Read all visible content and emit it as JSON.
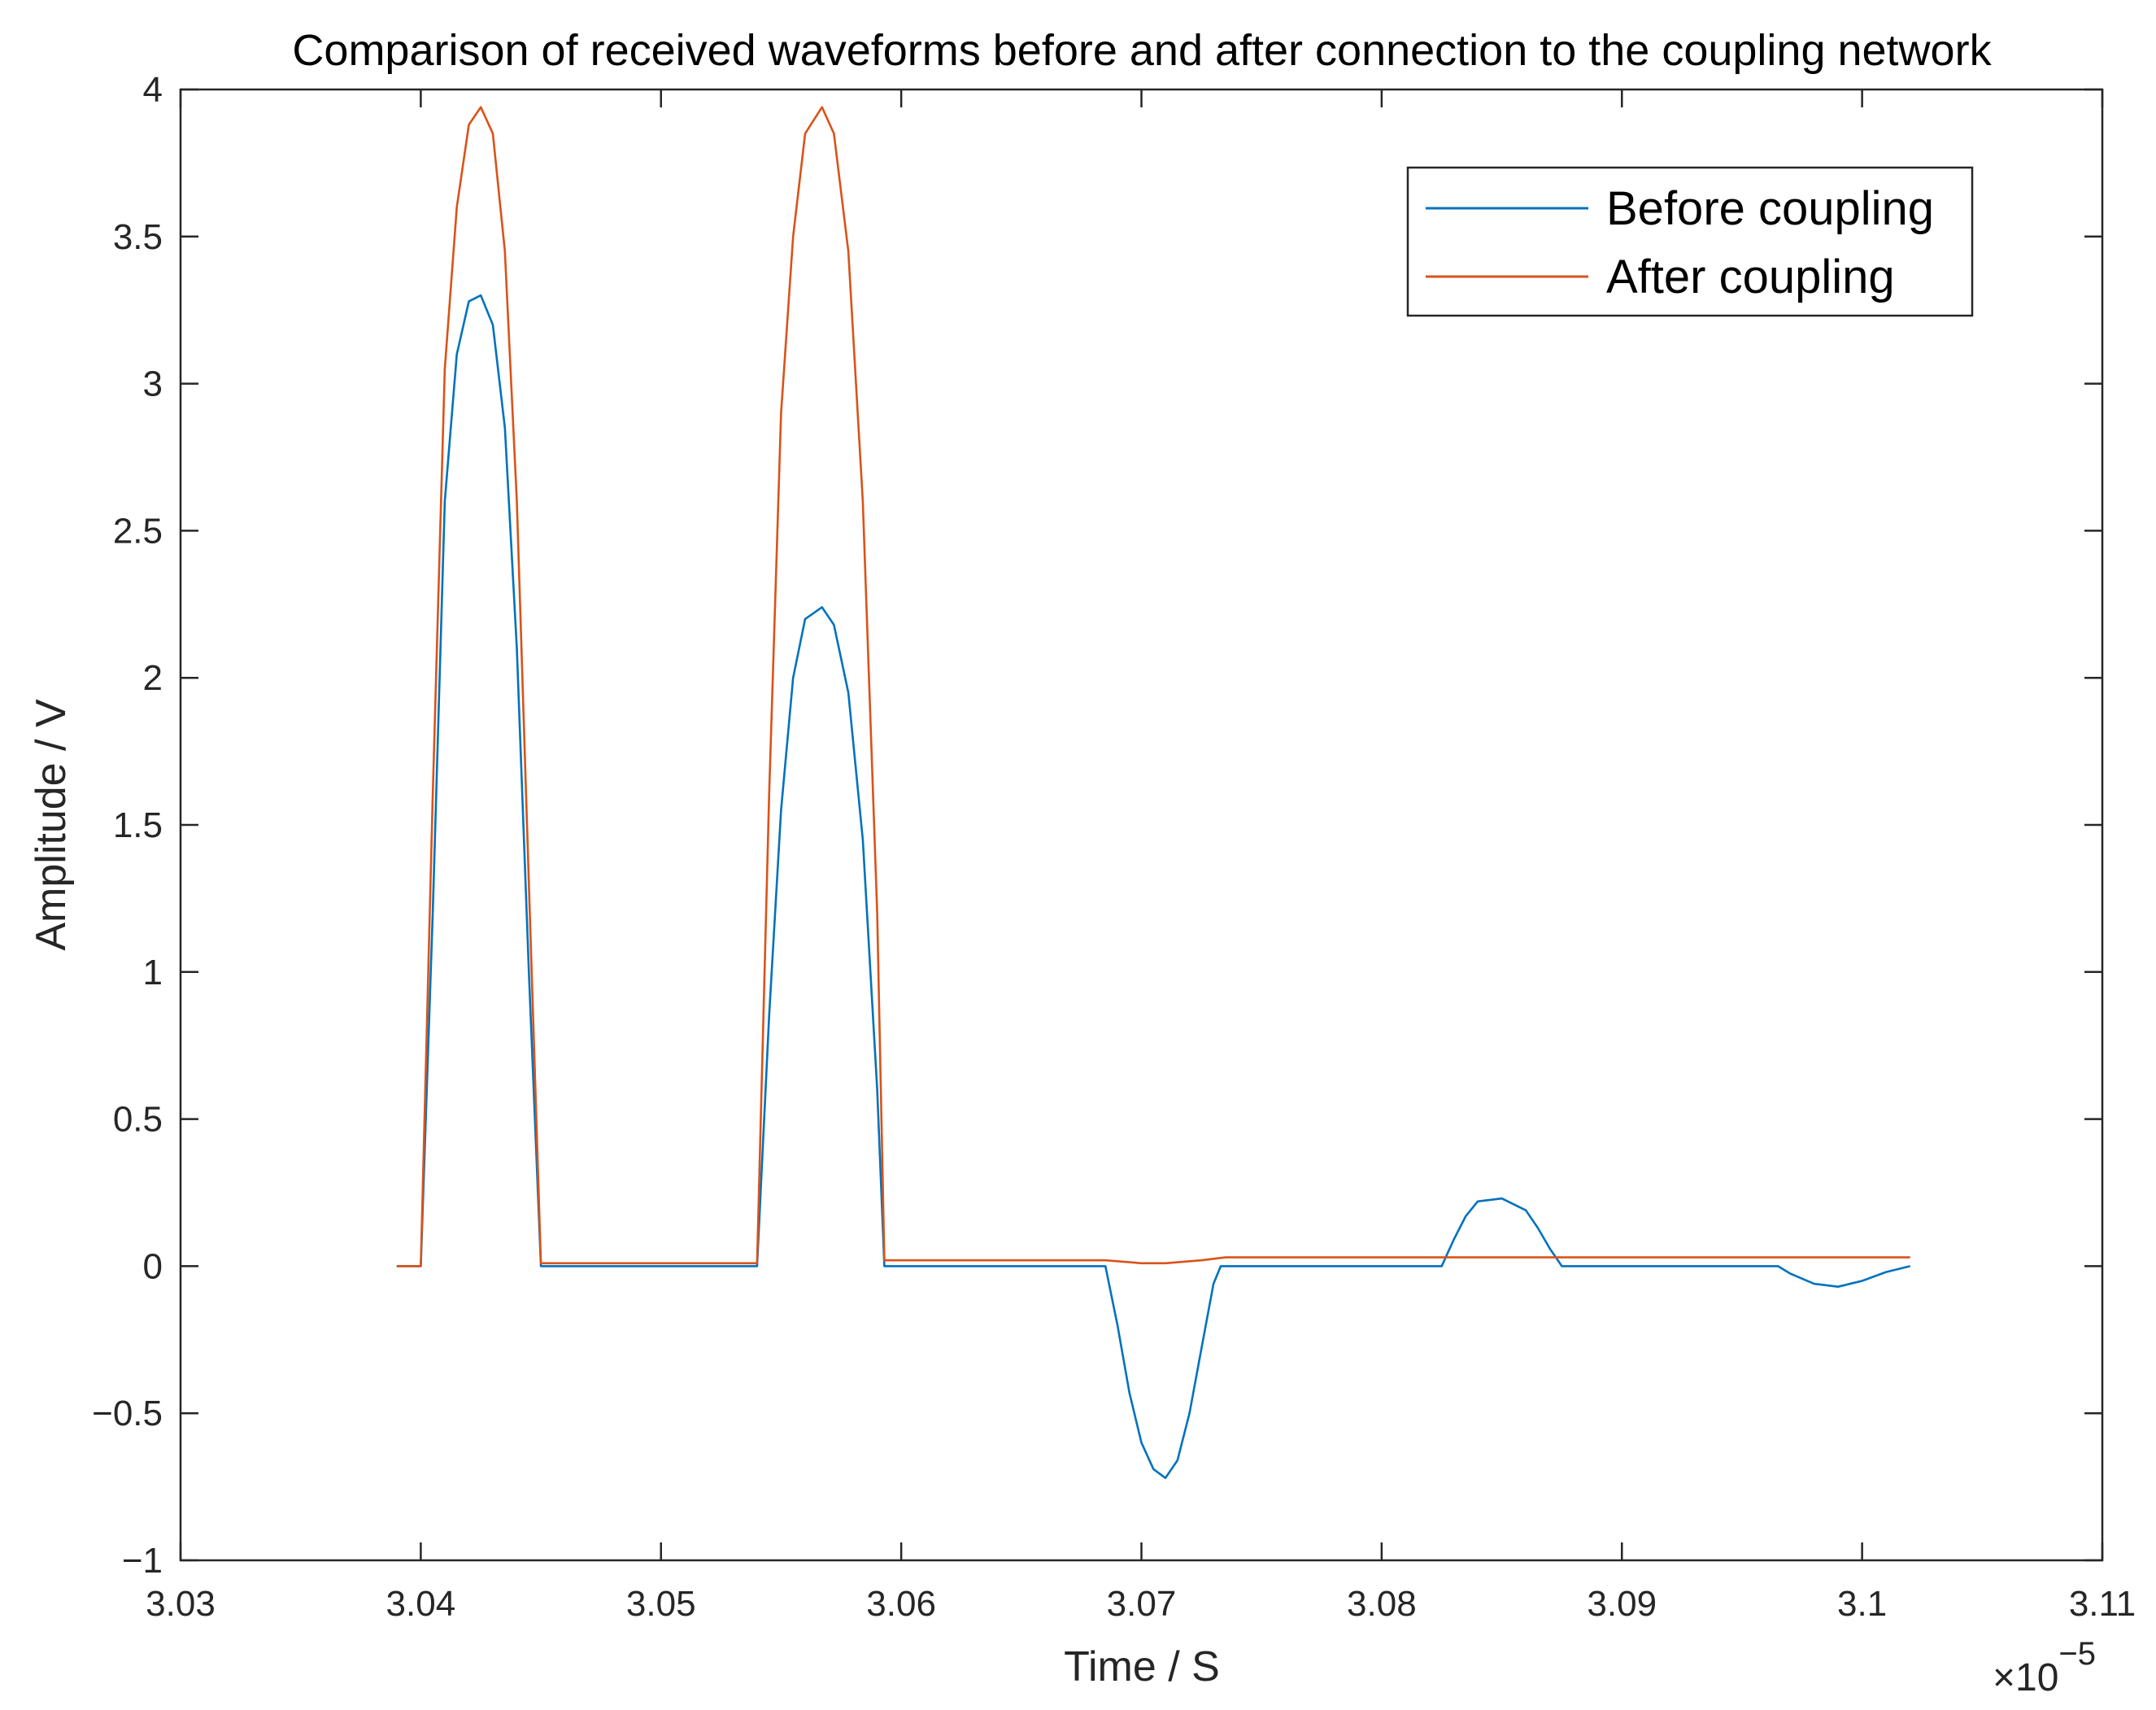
{
  "chart_data": {
    "type": "line",
    "title": "Comparison of received waveforms before and after connection to the coupling network",
    "xlabel": "Time / S",
    "ylabel": "Amplitude / V",
    "x_multiplier_base": "×10",
    "x_multiplier_exponent": "−5",
    "xlim": [
      3.03,
      3.11
    ],
    "ylim": [
      -1,
      4
    ],
    "x_ticks": [
      3.03,
      3.04,
      3.05,
      3.06,
      3.07,
      3.08,
      3.09,
      3.1,
      3.11
    ],
    "x_tick_labels": [
      "3.03",
      "3.04",
      "3.05",
      "3.06",
      "3.07",
      "3.08",
      "3.09",
      "3.1",
      "3.11"
    ],
    "y_ticks": [
      -1,
      -0.5,
      0,
      0.5,
      1,
      1.5,
      2,
      2.5,
      3,
      3.5,
      4
    ],
    "y_tick_labels": [
      "−1",
      "−0.5",
      "0",
      "0.5",
      "1",
      "1.5",
      "2",
      "2.5",
      "3",
      "3.5",
      "4"
    ],
    "grid": false,
    "legend_position": "top-right",
    "series": [
      {
        "name": "Before coupling",
        "color": "#0072BD",
        "points": [
          [
            3.039,
            0
          ],
          [
            3.04,
            0
          ],
          [
            3.0405,
            1.2
          ],
          [
            3.041,
            2.6
          ],
          [
            3.0415,
            3.1
          ],
          [
            3.042,
            3.28
          ],
          [
            3.0425,
            3.3
          ],
          [
            3.043,
            3.2
          ],
          [
            3.0435,
            2.85
          ],
          [
            3.044,
            2.1
          ],
          [
            3.0445,
            1.0
          ],
          [
            3.045,
            0
          ],
          [
            3.054,
            0
          ],
          [
            3.0545,
            0.85
          ],
          [
            3.055,
            1.55
          ],
          [
            3.0555,
            2.0
          ],
          [
            3.056,
            2.2
          ],
          [
            3.0567,
            2.24
          ],
          [
            3.0572,
            2.18
          ],
          [
            3.0578,
            1.95
          ],
          [
            3.0584,
            1.45
          ],
          [
            3.059,
            0.6
          ],
          [
            3.0593,
            0
          ],
          [
            3.0685,
            0
          ],
          [
            3.069,
            -0.2
          ],
          [
            3.0695,
            -0.43
          ],
          [
            3.07,
            -0.6
          ],
          [
            3.0705,
            -0.69
          ],
          [
            3.071,
            -0.72
          ],
          [
            3.0715,
            -0.66
          ],
          [
            3.072,
            -0.5
          ],
          [
            3.0725,
            -0.28
          ],
          [
            3.073,
            -0.06
          ],
          [
            3.0733,
            0
          ],
          [
            3.0825,
            0
          ],
          [
            3.083,
            0.09
          ],
          [
            3.0835,
            0.17
          ],
          [
            3.084,
            0.22
          ],
          [
            3.085,
            0.23
          ],
          [
            3.086,
            0.19
          ],
          [
            3.0865,
            0.13
          ],
          [
            3.087,
            0.06
          ],
          [
            3.0875,
            0
          ],
          [
            3.0965,
            0
          ],
          [
            3.097,
            -0.025
          ],
          [
            3.098,
            -0.06
          ],
          [
            3.099,
            -0.07
          ],
          [
            3.1,
            -0.05
          ],
          [
            3.101,
            -0.02
          ],
          [
            3.102,
            0
          ]
        ]
      },
      {
        "name": "After coupling",
        "color": "#D95319",
        "points": [
          [
            3.039,
            0
          ],
          [
            3.04,
            0
          ],
          [
            3.0405,
            1.6
          ],
          [
            3.041,
            3.05
          ],
          [
            3.0415,
            3.6
          ],
          [
            3.042,
            3.88
          ],
          [
            3.0425,
            3.94
          ],
          [
            3.043,
            3.85
          ],
          [
            3.0435,
            3.45
          ],
          [
            3.044,
            2.6
          ],
          [
            3.0445,
            1.3
          ],
          [
            3.045,
            0.01
          ],
          [
            3.054,
            0.01
          ],
          [
            3.0545,
            1.6
          ],
          [
            3.055,
            2.9
          ],
          [
            3.0555,
            3.5
          ],
          [
            3.056,
            3.85
          ],
          [
            3.0567,
            3.94
          ],
          [
            3.0572,
            3.85
          ],
          [
            3.0578,
            3.45
          ],
          [
            3.0584,
            2.6
          ],
          [
            3.059,
            1.2
          ],
          [
            3.0593,
            0.02
          ],
          [
            3.0685,
            0.02
          ],
          [
            3.07,
            0.01
          ],
          [
            3.071,
            0.01
          ],
          [
            3.0725,
            0.02
          ],
          [
            3.0735,
            0.03
          ],
          [
            3.0875,
            0.03
          ],
          [
            3.102,
            0.03
          ]
        ]
      }
    ]
  }
}
